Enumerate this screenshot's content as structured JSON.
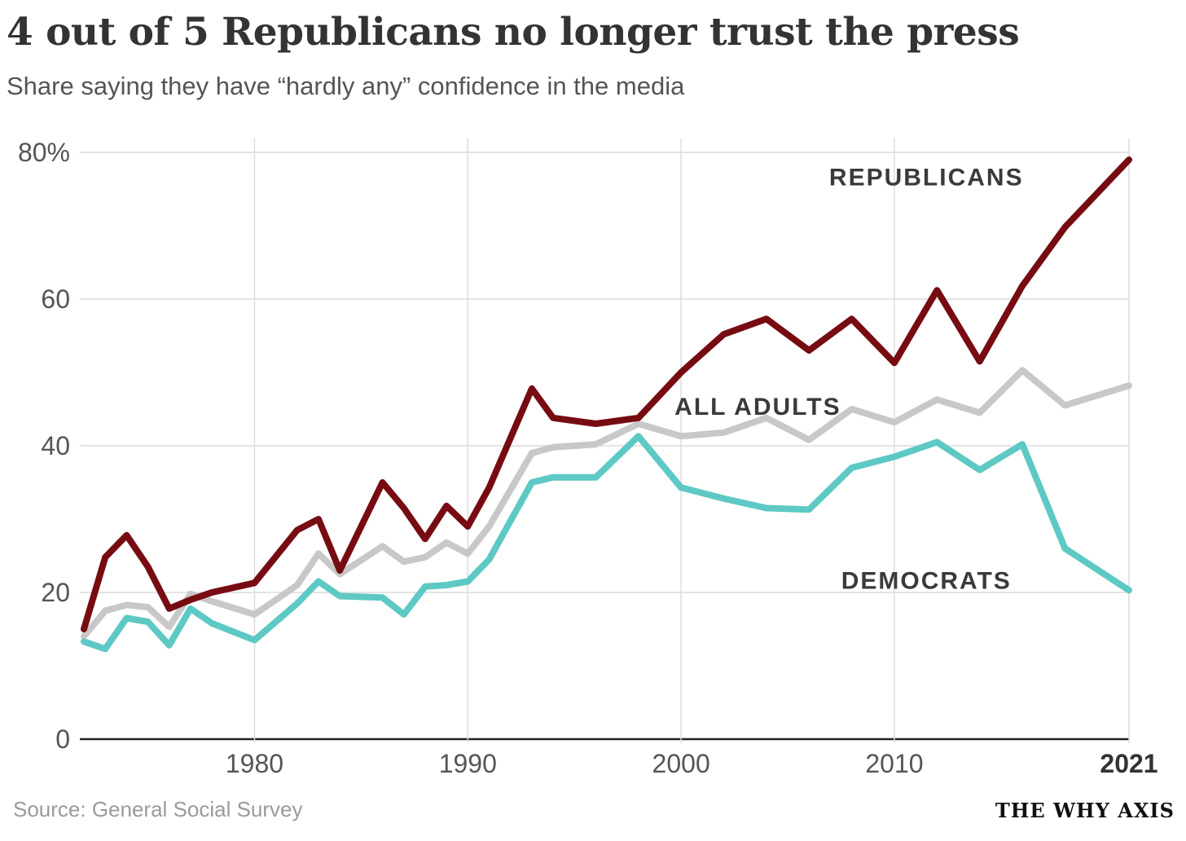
{
  "header": {
    "title": "4 out of 5 Republicans no longer trust the press",
    "subtitle": "Share saying they have “hardly any” confidence in the media"
  },
  "footer": {
    "source": "Source: General Social Survey",
    "brand": "THE WHY AXIS"
  },
  "chart_data": {
    "type": "line",
    "title": "4 out of 5 Republicans no longer trust the press",
    "subtitle": "Share saying they have “hardly any” confidence in the media",
    "xlabel": "",
    "ylabel": "",
    "xlim": [
      1972,
      2021
    ],
    "ylim": [
      0,
      80
    ],
    "grid": true,
    "legend": "inline labels",
    "x_ticks": [
      {
        "value": 1980,
        "label": "1980"
      },
      {
        "value": 1990,
        "label": "1990"
      },
      {
        "value": 2000,
        "label": "2000"
      },
      {
        "value": 2010,
        "label": "2010"
      },
      {
        "value": 2021,
        "label": "2021",
        "bold": true
      }
    ],
    "y_ticks": [
      {
        "value": 0,
        "label": "0"
      },
      {
        "value": 20,
        "label": "20"
      },
      {
        "value": 40,
        "label": "40"
      },
      {
        "value": 60,
        "label": "60"
      },
      {
        "value": 80,
        "label": "80%"
      }
    ],
    "series": [
      {
        "name": "All adults",
        "label": "ALL ADULTS",
        "color": "#c8c8c8",
        "x": [
          1972,
          1973,
          1974,
          1975,
          1976,
          1977,
          1978,
          1980,
          1982,
          1983,
          1984,
          1986,
          1987,
          1988,
          1989,
          1990,
          1991,
          1993,
          1994,
          1996,
          1998,
          2000,
          2002,
          2004,
          2006,
          2008,
          2010,
          2012,
          2014,
          2016,
          2018,
          2021
        ],
        "values": [
          14,
          17.5,
          18.3,
          18,
          15.3,
          19.8,
          18.8,
          17,
          21,
          25.3,
          22.5,
          26.3,
          24.2,
          24.8,
          26.8,
          25.3,
          29,
          39,
          39.8,
          40.2,
          43,
          41.3,
          41.8,
          43.8,
          40.8,
          45,
          43.2,
          46.3,
          44.5,
          50.3,
          45.5,
          48.2
        ]
      },
      {
        "name": "Democrats",
        "label": "DEMOCRATS",
        "color": "#5ec9c4",
        "x": [
          1972,
          1973,
          1974,
          1975,
          1976,
          1977,
          1978,
          1980,
          1982,
          1983,
          1984,
          1986,
          1987,
          1988,
          1989,
          1990,
          1991,
          1993,
          1994,
          1996,
          1998,
          2000,
          2002,
          2004,
          2006,
          2008,
          2010,
          2012,
          2014,
          2016,
          2018,
          2021
        ],
        "values": [
          13.3,
          12.3,
          16.5,
          16,
          12.8,
          17.8,
          15.8,
          13.5,
          18.5,
          21.5,
          19.5,
          19.3,
          17,
          20.8,
          21,
          21.5,
          24.5,
          35,
          35.7,
          35.7,
          41.3,
          34.3,
          32.8,
          31.5,
          31.3,
          37,
          38.5,
          40.5,
          36.7,
          40.2,
          26,
          20.3
        ]
      },
      {
        "name": "Republicans",
        "label": "REPUBLICANS",
        "color": "#760c12",
        "x": [
          1972,
          1973,
          1974,
          1975,
          1976,
          1977,
          1978,
          1980,
          1982,
          1983,
          1984,
          1986,
          1987,
          1988,
          1989,
          1990,
          1991,
          1993,
          1994,
          1996,
          1998,
          2000,
          2002,
          2004,
          2006,
          2008,
          2010,
          2012,
          2014,
          2016,
          2018,
          2021
        ],
        "values": [
          15,
          24.8,
          27.8,
          23.5,
          17.8,
          19,
          20,
          21.3,
          28.5,
          30,
          23,
          35,
          31.5,
          27.3,
          31.8,
          29,
          34.3,
          47.8,
          43.8,
          43,
          43.8,
          50,
          55.2,
          57.3,
          53,
          57.3,
          51.3,
          61.2,
          51.5,
          61.8,
          69.8,
          79
        ]
      }
    ]
  }
}
